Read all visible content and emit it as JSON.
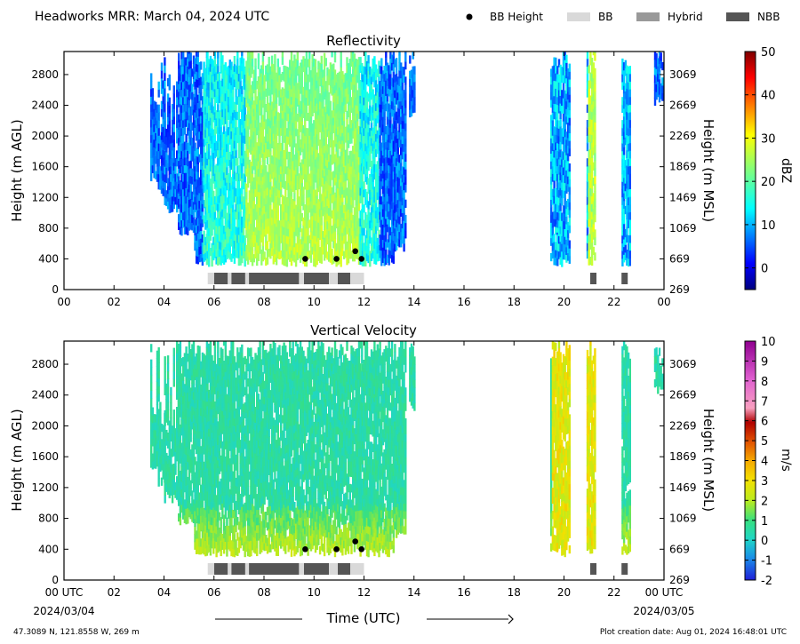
{
  "header": {
    "title": "Headworks MRR:  March 04, 2024 UTC",
    "legend": [
      {
        "label": "BB Height",
        "marker": "dot",
        "color": "#000000"
      },
      {
        "label": "BB",
        "marker": "box",
        "color": "#d9d9d9"
      },
      {
        "label": "Hybrid",
        "marker": "box",
        "color": "#999999"
      },
      {
        "label": "NBB",
        "marker": "box",
        "color": "#555555"
      }
    ]
  },
  "footer": {
    "location": "47.3089 N, 121.8558 W, 269 m",
    "creation_date": "Plot creation date: Aug 01, 2024 16:48:01 UTC",
    "xlabel": "Time (UTC)",
    "start_date": "2024/03/04",
    "end_date": "2024/03/05"
  },
  "chart_data": [
    {
      "type": "heatmap",
      "title": "Reflectivity",
      "xlabel": "",
      "ylabel": "Height (m AGL)",
      "ylabel_right": "Height (m MSL)",
      "xlim": [
        0,
        24
      ],
      "ylim": [
        0,
        3100
      ],
      "x_ticks": [
        "00",
        "02",
        "04",
        "06",
        "08",
        "10",
        "12",
        "14",
        "16",
        "18",
        "20",
        "22",
        "00"
      ],
      "y_ticks": [
        0,
        400,
        800,
        1200,
        1600,
        2000,
        2400,
        2800
      ],
      "y_ticks_right": [
        "269",
        "669",
        "1069",
        "1469",
        "1869",
        "2269",
        "2669",
        "3069"
      ],
      "colorbar": {
        "label": "dBZ",
        "min": -5,
        "max": 50,
        "ticks": [
          0,
          10,
          20,
          30,
          40,
          50
        ],
        "palette": "jet"
      },
      "grid": false,
      "bb_height_points": [
        {
          "x": 9.65,
          "y": 400
        },
        {
          "x": 10.9,
          "y": 400
        },
        {
          "x": 11.65,
          "y": 500
        },
        {
          "x": 11.9,
          "y": 400
        }
      ],
      "bb_segments": [
        {
          "start": 5.75,
          "end": 5.98,
          "class": "BB"
        },
        {
          "start": 6.0,
          "end": 6.55,
          "class": "NBB"
        },
        {
          "start": 6.55,
          "end": 6.7,
          "class": "BB"
        },
        {
          "start": 6.7,
          "end": 7.25,
          "class": "NBB"
        },
        {
          "start": 7.25,
          "end": 7.4,
          "class": "BB"
        },
        {
          "start": 7.4,
          "end": 9.4,
          "class": "NBB"
        },
        {
          "start": 9.4,
          "end": 9.6,
          "class": "BB"
        },
        {
          "start": 9.6,
          "end": 10.6,
          "class": "NBB"
        },
        {
          "start": 10.6,
          "end": 10.95,
          "class": "BB"
        },
        {
          "start": 10.95,
          "end": 11.45,
          "class": "NBB"
        },
        {
          "start": 11.45,
          "end": 12.0,
          "class": "BB"
        },
        {
          "start": 21.05,
          "end": 21.3,
          "class": "NBB"
        },
        {
          "start": 22.3,
          "end": 22.55,
          "class": "NBB"
        }
      ]
    },
    {
      "type": "heatmap",
      "title": "Vertical Velocity",
      "xlabel": "Time (UTC)",
      "ylabel": "Height (m AGL)",
      "ylabel_right": "Height (m MSL)",
      "xlim": [
        0,
        24
      ],
      "ylim": [
        0,
        3100
      ],
      "x_ticks": [
        "00 UTC",
        "02",
        "04",
        "06",
        "08",
        "10",
        "12",
        "14",
        "16",
        "18",
        "20",
        "22",
        "00 UTC"
      ],
      "y_ticks": [
        0,
        400,
        800,
        1200,
        1600,
        2000,
        2400,
        2800
      ],
      "y_ticks_right": [
        "269",
        "669",
        "1069",
        "1469",
        "1869",
        "2269",
        "2669",
        "3069"
      ],
      "colorbar": {
        "label": "m/s",
        "min": -2,
        "max": 10,
        "ticks": [
          -2,
          -1,
          0,
          1,
          2,
          3,
          4,
          5,
          6,
          7,
          8,
          9,
          10
        ],
        "palette": "velocity"
      },
      "grid": false,
      "bb_height_points": [
        {
          "x": 9.65,
          "y": 400
        },
        {
          "x": 10.9,
          "y": 400
        },
        {
          "x": 11.65,
          "y": 500
        },
        {
          "x": 11.9,
          "y": 400
        }
      ],
      "bb_segments": [
        {
          "start": 5.75,
          "end": 5.98,
          "class": "BB"
        },
        {
          "start": 6.0,
          "end": 6.55,
          "class": "NBB"
        },
        {
          "start": 6.55,
          "end": 6.7,
          "class": "BB"
        },
        {
          "start": 6.7,
          "end": 7.25,
          "class": "NBB"
        },
        {
          "start": 7.25,
          "end": 7.4,
          "class": "BB"
        },
        {
          "start": 7.4,
          "end": 9.4,
          "class": "NBB"
        },
        {
          "start": 9.4,
          "end": 9.6,
          "class": "BB"
        },
        {
          "start": 9.6,
          "end": 10.6,
          "class": "NBB"
        },
        {
          "start": 10.6,
          "end": 10.95,
          "class": "BB"
        },
        {
          "start": 10.95,
          "end": 11.45,
          "class": "NBB"
        },
        {
          "start": 11.45,
          "end": 12.0,
          "class": "BB"
        },
        {
          "start": 21.05,
          "end": 21.3,
          "class": "NBB"
        },
        {
          "start": 22.3,
          "end": 22.55,
          "class": "NBB"
        }
      ]
    }
  ]
}
